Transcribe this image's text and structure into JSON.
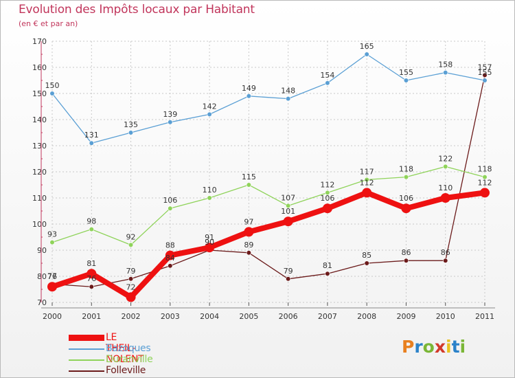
{
  "header": {
    "title": "Evolution des Impôts locaux par Habitant",
    "subtitle": "(en € et par an)"
  },
  "logo": {
    "text": "Proxiti",
    "colors": [
      "#e8801f",
      "#2b82c9",
      "#7ab636",
      "#d23a2a",
      "#e8c11f",
      "#2b82c9",
      "#7ab636"
    ]
  },
  "chart_data": {
    "type": "line",
    "x": [
      "2000",
      "2001",
      "2002",
      "2003",
      "2004",
      "2005",
      "2006",
      "2007",
      "2008",
      "2009",
      "2010",
      "2011"
    ],
    "ylim": [
      70,
      170
    ],
    "yticks": [
      "70",
      "80",
      "90",
      "100",
      "110",
      "120",
      "130",
      "140",
      "150",
      "160",
      "170"
    ],
    "grid": true,
    "legend_position": "bottom-left",
    "series": [
      {
        "name": "Folleville",
        "color": "#6b1a1a",
        "values": [
          77,
          76,
          79,
          84,
          90,
          89,
          79,
          81,
          85,
          86,
          86,
          157
        ],
        "labels": [
          "77",
          "76",
          "79",
          "84",
          "90",
          "89",
          "79",
          "81",
          "85",
          "86",
          "86",
          "157"
        ]
      },
      {
        "name": "Duranville",
        "color": "#8fd35a",
        "values": [
          93,
          98,
          92,
          106,
          110,
          115,
          107,
          112,
          117,
          118,
          122,
          118
        ],
        "labels": [
          "93",
          "98",
          "92",
          "106",
          "110",
          "115",
          "107",
          "112",
          "117",
          "118",
          "122",
          "118"
        ]
      },
      {
        "name": "Bazoques",
        "color": "#5a9fd4",
        "values": [
          150,
          131,
          135,
          139,
          142,
          149,
          148,
          154,
          165,
          155,
          158,
          155
        ],
        "labels": [
          "150",
          "131",
          "135",
          "139",
          "142",
          "149",
          "148",
          "154",
          "165",
          "155",
          "158",
          "155"
        ]
      },
      {
        "name": "LE THEIL-NOLENT",
        "color": "#ee1111",
        "values": [
          76,
          81,
          72,
          88,
          91,
          97,
          101,
          106,
          112,
          106,
          110,
          112
        ],
        "labels": [
          "76",
          "81",
          "72",
          "88",
          "91",
          "97",
          "101",
          "106",
          "112",
          "106",
          "110",
          "112"
        ]
      }
    ],
    "legend_order": [
      "LE THEIL-NOLENT",
      "Bazoques",
      "Duranville",
      "Folleville"
    ]
  }
}
